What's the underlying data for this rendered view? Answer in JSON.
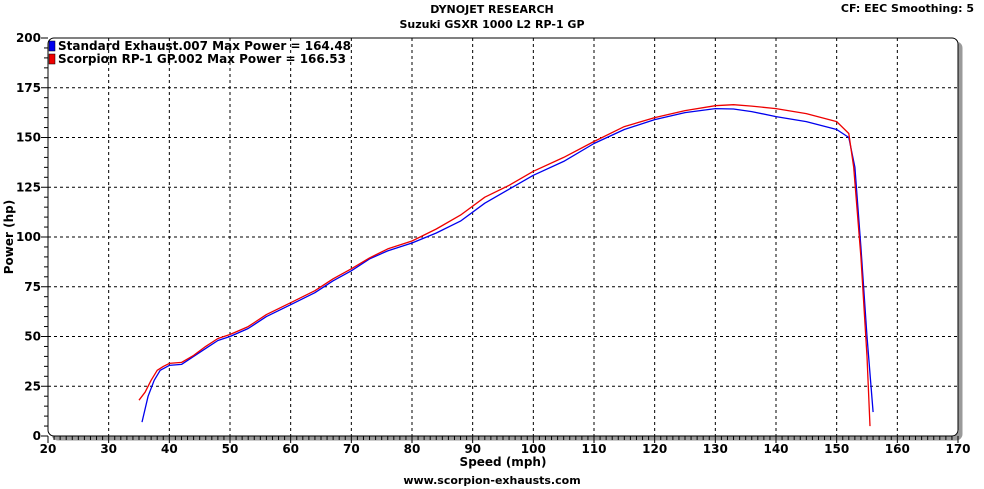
{
  "header": {
    "title": "DYNOJET RESEARCH",
    "subtitle": "Suzuki GSXR 1000 L2 RP-1 GP",
    "correction": "CF: EEC  Smoothing: 5"
  },
  "footer": {
    "url": "www.scorpion-exhausts.com"
  },
  "chart_data": {
    "type": "line",
    "xlabel": "Speed (mph)",
    "ylabel": "Power (hp)",
    "xlim": [
      20,
      170
    ],
    "ylim": [
      0,
      200
    ],
    "xticks": [
      20,
      30,
      40,
      50,
      60,
      70,
      80,
      90,
      100,
      110,
      120,
      130,
      140,
      150,
      160,
      170
    ],
    "yticks": [
      0,
      25,
      50,
      75,
      100,
      125,
      150,
      175,
      200
    ],
    "grid": true,
    "legend_position": "top-left",
    "series": [
      {
        "name": "Standard Exhaust.007 Max Power = 164.48",
        "color": "#0000ee",
        "x": [
          35.5,
          36.5,
          37.5,
          38.5,
          40,
          42,
          44,
          46,
          48,
          50,
          53,
          56,
          60,
          64,
          67,
          70,
          73,
          76,
          80,
          84,
          88,
          92,
          96,
          100,
          105,
          110,
          115,
          120,
          125,
          130,
          133,
          136,
          140,
          145,
          150,
          152,
          153,
          154,
          155,
          156
        ],
        "y": [
          7,
          20,
          28,
          33,
          35.5,
          36,
          40,
          44,
          48,
          50,
          54,
          60,
          66,
          72,
          78,
          83,
          89,
          93,
          97,
          102,
          108,
          117,
          124,
          131,
          138,
          147,
          154,
          159,
          162.5,
          164.5,
          164.3,
          163,
          160.5,
          158,
          154,
          150,
          135,
          95,
          50,
          12
        ]
      },
      {
        "name": "Scorpion RP-1 GP.002 Max Power = 166.53",
        "color": "#ee0000",
        "x": [
          35,
          36,
          37,
          38,
          39,
          40,
          42,
          44,
          46,
          48,
          50,
          53,
          56,
          60,
          64,
          67,
          70,
          73,
          76,
          80,
          84,
          88,
          92,
          96,
          100,
          105,
          110,
          115,
          120,
          125,
          130,
          133,
          136,
          140,
          145,
          150,
          152,
          152.8,
          154,
          155,
          155.5
        ],
        "y": [
          18,
          22,
          28,
          33,
          35,
          36.5,
          37,
          40.5,
          45,
          49,
          51,
          55,
          61,
          67,
          73,
          79,
          84,
          89.5,
          94,
          98,
          104,
          111,
          120,
          126,
          133,
          140,
          148,
          155.5,
          160,
          163.5,
          166,
          166.5,
          165.8,
          164.5,
          162,
          158,
          152,
          135,
          90,
          40,
          5
        ]
      }
    ]
  }
}
